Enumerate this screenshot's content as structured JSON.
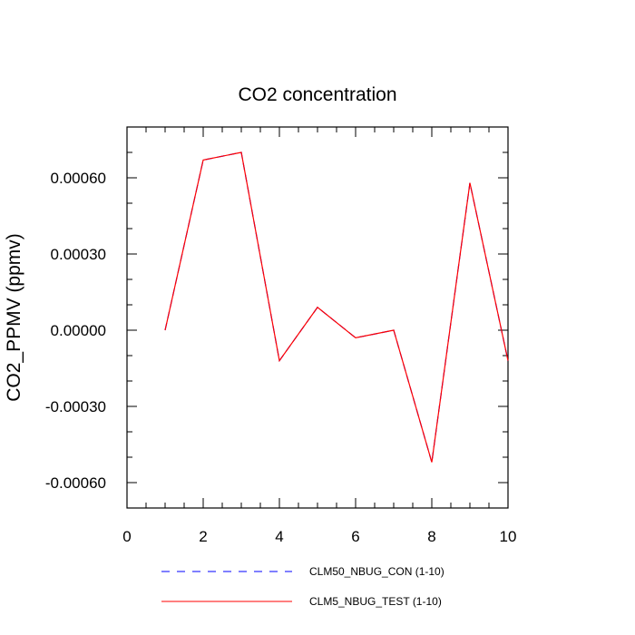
{
  "chart_data": {
    "type": "line",
    "title": "CO2 concentration",
    "xlabel": "",
    "ylabel": "CO2_PPMV  (ppmv)",
    "xlim": [
      0,
      10
    ],
    "ylim": [
      -0.0007,
      0.0008
    ],
    "xticks": [
      0,
      2,
      4,
      6,
      8,
      10
    ],
    "xtick_labels": [
      "0",
      "2",
      "4",
      "6",
      "8",
      "10"
    ],
    "yticks": [
      -0.0006,
      -0.0003,
      0,
      0.0003,
      0.0006
    ],
    "ytick_labels": [
      "-0.00060",
      "-0.00030",
      "0.00000",
      "0.00030",
      "0.00060"
    ],
    "x": [
      1,
      2,
      3,
      4,
      5,
      6,
      7,
      8,
      9,
      10
    ],
    "series": [
      {
        "name": "CLM50_NBUG_CON (1-10)",
        "color": "#0000ff",
        "dash": "dashed",
        "values": [
          0.0,
          0.00067,
          0.0007,
          -0.00012,
          9e-05,
          -3e-05,
          0.0,
          -0.00052,
          0.00058,
          -0.00012
        ]
      },
      {
        "name": "CLM5_NBUG_TEST (1-10)",
        "color": "#ff0000",
        "dash": "solid",
        "values": [
          0.0,
          0.00067,
          0.0007,
          -0.00012,
          9e-05,
          -3e-05,
          0.0,
          -0.00052,
          0.00058,
          -0.00012
        ]
      }
    ],
    "legend_position": "bottom"
  }
}
